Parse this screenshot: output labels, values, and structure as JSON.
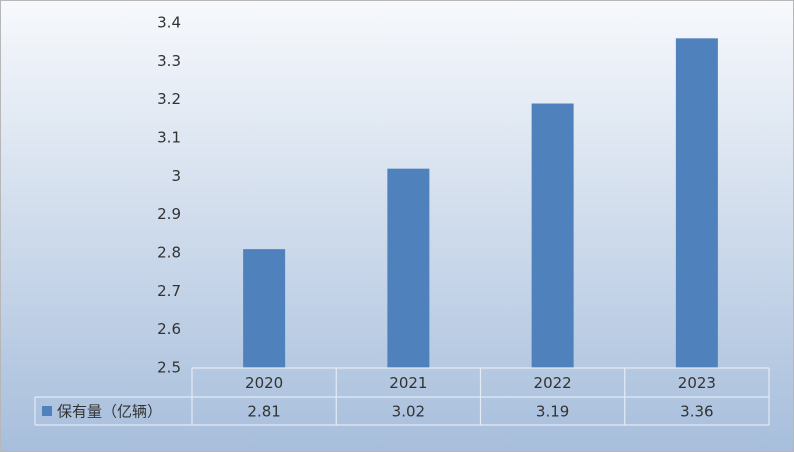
{
  "chart_data": {
    "type": "bar",
    "categories": [
      "2020",
      "2021",
      "2022",
      "2023"
    ],
    "series": [
      {
        "name": "保有量（亿辆）",
        "color": "#4f81bd",
        "values": [
          2.81,
          3.02,
          3.19,
          3.36
        ]
      }
    ],
    "ylim": [
      2.5,
      3.4
    ],
    "yticks": [
      2.5,
      2.6,
      2.7,
      2.8,
      2.9,
      3,
      3.1,
      3.2,
      3.3,
      3.4
    ],
    "data_table": true
  }
}
